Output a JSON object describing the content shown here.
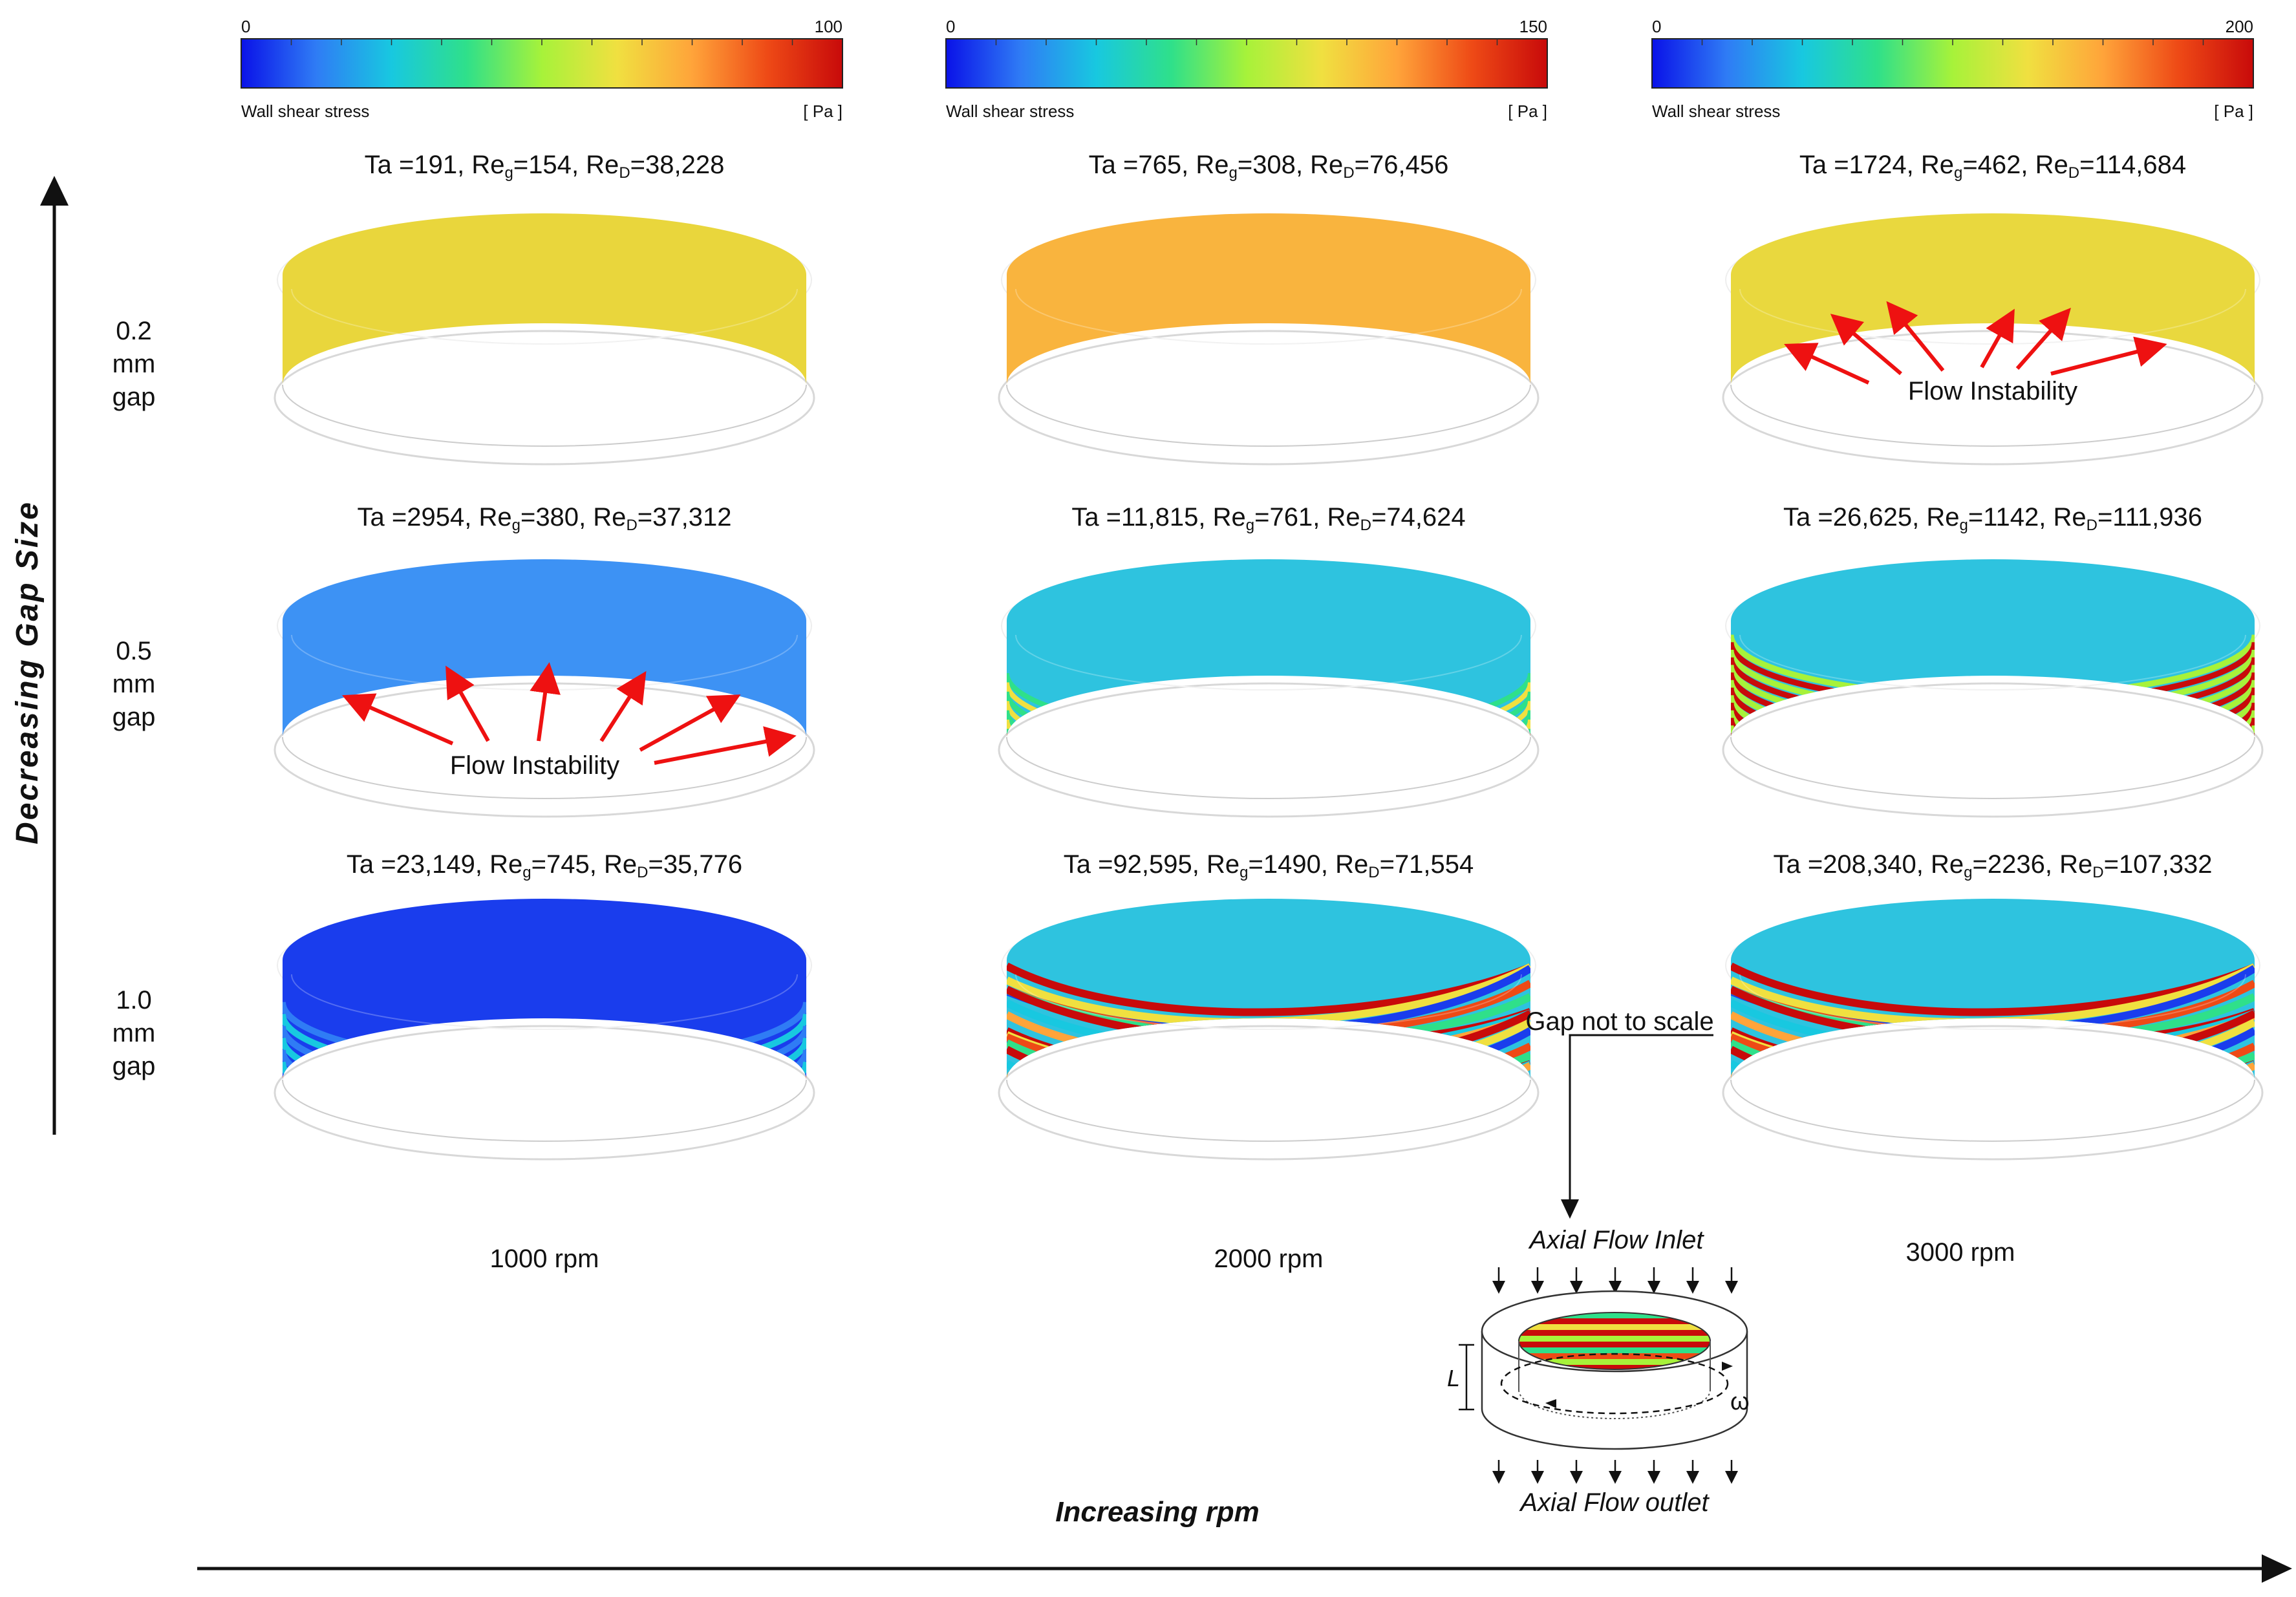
{
  "colorbars": [
    {
      "min": "0",
      "max": "100",
      "label": "Wall shear stress",
      "unit": "[ Pa ]"
    },
    {
      "min": "0",
      "max": "150",
      "label": "Wall shear stress",
      "unit": "[ Pa ]"
    },
    {
      "min": "0",
      "max": "200",
      "label": "Wall shear stress",
      "unit": "[ Pa ]"
    }
  ],
  "colormap": [
    "#0a12e8",
    "#2f7cf5",
    "#18c8e0",
    "#2fe08a",
    "#a7f23a",
    "#f0e040",
    "#ffa43a",
    "#ee4a16",
    "#c80a0a"
  ],
  "axes": {
    "y_label": "Decreasing Gap Size",
    "x_label": "Increasing rpm"
  },
  "rows": [
    {
      "gap_l1": "0.2",
      "gap_l2": "mm",
      "gap_l3": "gap"
    },
    {
      "gap_l1": "0.5",
      "gap_l2": "mm",
      "gap_l3": "gap"
    },
    {
      "gap_l1": "1.0",
      "gap_l2": "mm",
      "gap_l3": "gap"
    }
  ],
  "columns": [
    {
      "rpm": "1000 rpm"
    },
    {
      "rpm": "2000 rpm"
    },
    {
      "rpm": "3000 rpm"
    }
  ],
  "cells": [
    [
      {
        "ta": "191",
        "reg": "154",
        "red": "38,228",
        "pattern": "uniform",
        "color": "#e9d63c"
      },
      {
        "ta": "765",
        "reg": "308",
        "red": "76,456",
        "pattern": "uniform",
        "color": "#f9b43e"
      },
      {
        "ta": "1724",
        "reg": "462",
        "red": "114,684",
        "pattern": "uniform",
        "color": "#e9d83e"
      }
    ],
    [
      {
        "ta": "2954",
        "reg": "380",
        "red": "37,312",
        "pattern": "uniform",
        "color": "#3d92f4"
      },
      {
        "ta": "11,815",
        "reg": "761",
        "red": "74,624",
        "pattern": "bands-low",
        "color": "#2ec3df"
      },
      {
        "ta": "26,625",
        "reg": "1142",
        "red": "111,936",
        "pattern": "bands-high",
        "color": "#2ec3df"
      }
    ],
    [
      {
        "ta": "23,149",
        "reg": "745",
        "red": "35,776",
        "pattern": "bands-blue",
        "color": "#1a3ded"
      },
      {
        "ta": "92,595",
        "reg": "1490",
        "red": "71,554",
        "pattern": "wavy",
        "color": "#2ec3df"
      },
      {
        "ta": "208,340",
        "reg": "2236",
        "red": "107,332",
        "pattern": "wavy",
        "color": "#2ec3df"
      }
    ]
  ],
  "labels": {
    "ta_prefix": "Ta =",
    "re_symbol": "Re",
    "g_sub": "g",
    "d_sub": "D",
    "flow_instability": "Flow Instability",
    "gap_not_to_scale": "Gap not to scale",
    "inlet": "Axial Flow Inlet",
    "outlet": "Axial Flow outlet",
    "length_symbol": "L",
    "omega_symbol": "ω"
  }
}
